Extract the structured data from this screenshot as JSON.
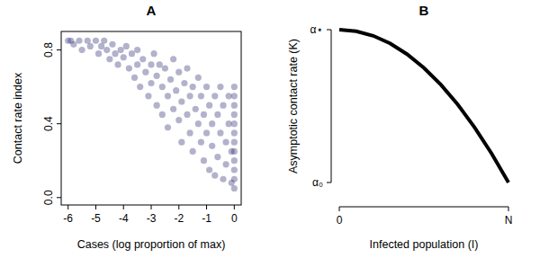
{
  "chart_data": [
    {
      "type": "scatter",
      "title": "A",
      "x_label": "Cases (log proportion of max)",
      "y_label": "Contact rate index",
      "color": "#22226e",
      "marker": "circle",
      "x": [
        -6,
        -5.9,
        -5.8,
        -5.6,
        -5.5,
        -5.3,
        -5.2,
        -5.0,
        -4.9,
        -4.8,
        -4.7,
        -4.6,
        -4.5,
        -4.4,
        -4.3,
        -4.2,
        -4.1,
        -4.0,
        -3.9,
        -3.8,
        -3.7,
        -3.6,
        -3.5,
        -3.5,
        -3.4,
        -3.3,
        -3.2,
        -3.1,
        -3.0,
        -3.0,
        -2.9,
        -2.8,
        -2.8,
        -2.7,
        -2.6,
        -2.6,
        -2.5,
        -2.4,
        -2.4,
        -2.3,
        -2.2,
        -2.2,
        -2.1,
        -2.0,
        -2.0,
        -1.9,
        -1.9,
        -1.8,
        -1.7,
        -1.7,
        -1.6,
        -1.6,
        -1.5,
        -1.5,
        -1.4,
        -1.3,
        -1.3,
        -1.2,
        -1.2,
        -1.1,
        -1.1,
        -1.0,
        -1.0,
        -0.9,
        -0.9,
        -0.8,
        -0.8,
        -0.7,
        -0.7,
        -0.6,
        -0.6,
        -0.5,
        -0.5,
        -0.4,
        -0.4,
        -0.3,
        -0.3,
        -0.2,
        -0.2,
        -0.1,
        -0.1,
        0,
        0,
        0,
        0,
        0,
        0,
        0,
        0,
        0,
        0,
        0,
        0
      ],
      "values": [
        0.85,
        0.85,
        0.83,
        0.85,
        0.8,
        0.85,
        0.82,
        0.85,
        0.78,
        0.82,
        0.85,
        0.8,
        0.75,
        0.83,
        0.78,
        0.72,
        0.8,
        0.76,
        0.82,
        0.7,
        0.78,
        0.65,
        0.72,
        0.8,
        0.6,
        0.75,
        0.68,
        0.55,
        0.72,
        0.62,
        0.78,
        0.5,
        0.66,
        0.72,
        0.45,
        0.6,
        0.7,
        0.55,
        0.38,
        0.64,
        0.48,
        0.75,
        0.58,
        0.42,
        0.68,
        0.52,
        0.3,
        0.62,
        0.45,
        0.7,
        0.35,
        0.55,
        0.6,
        0.25,
        0.48,
        0.4,
        0.65,
        0.3,
        0.55,
        0.2,
        0.45,
        0.6,
        0.35,
        0.5,
        0.15,
        0.4,
        0.28,
        0.55,
        0.12,
        0.45,
        0.22,
        0.35,
        0.6,
        0.1,
        0.5,
        0.3,
        0.18,
        0.55,
        0.4,
        0.25,
        0.08,
        0.6,
        0.55,
        0.5,
        0.45,
        0.4,
        0.35,
        0.3,
        0.25,
        0.2,
        0.15,
        0.1,
        0.05
      ],
      "xlim": [
        -6.25,
        0.25
      ],
      "ylim": [
        -0.04,
        0.9
      ],
      "xticks": [
        -6,
        -5,
        -4,
        -3,
        -2,
        -1,
        0
      ],
      "yticks": [
        {
          "value": 0,
          "label": "0.0"
        },
        {
          "value": 0.4,
          "label": "0.4"
        },
        {
          "value": 0.8,
          "label": "0.8"
        }
      ]
    },
    {
      "type": "line",
      "title": "B",
      "x_label": "Infected population (I)",
      "y_label": "Asymptotic contact rate (K)",
      "color": "#000000",
      "line_style": "solid",
      "x": [
        0,
        0.1,
        0.2,
        0.3,
        0.4,
        0.5,
        0.6,
        0.7,
        0.8,
        0.9,
        1
      ],
      "values": [
        1,
        0.99,
        0.96,
        0.91,
        0.84,
        0.75,
        0.64,
        0.51,
        0.36,
        0.19,
        0
      ],
      "xlim": [
        0,
        1
      ],
      "ylim": [
        0,
        1
      ],
      "xticks": [
        0,
        {
          "value": 1,
          "label": "N"
        }
      ],
      "yticks": [
        {
          "value": 0,
          "label": "α₀"
        },
        {
          "value": 1,
          "label": "α⋆"
        }
      ]
    }
  ]
}
